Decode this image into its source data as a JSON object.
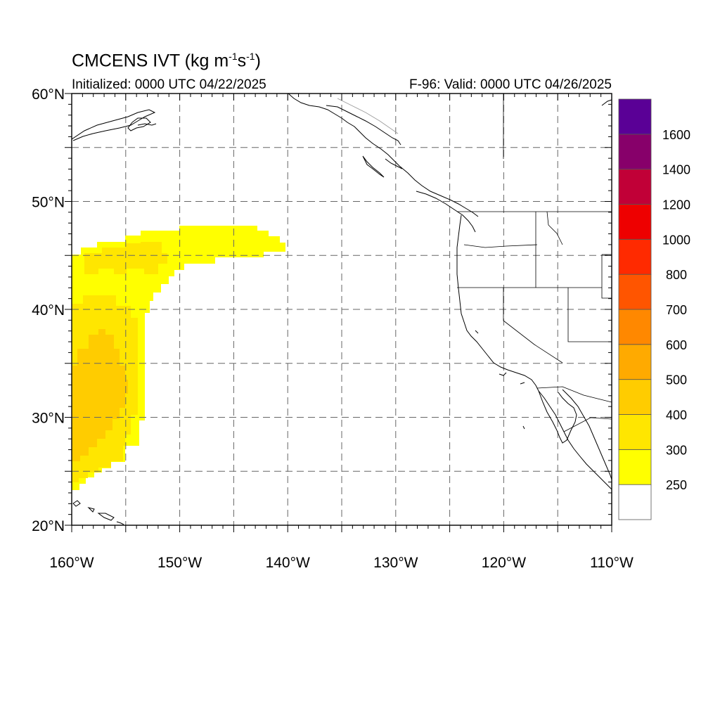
{
  "header": {
    "title_main": "CMCENS IVT (kg m",
    "title_exp1": "-1",
    "title_mid": "s",
    "title_exp2": "-1",
    "title_end": ")",
    "initialized": "Initialized: 0000 UTC 04/22/2025",
    "valid": "F-96: Valid: 0000 UTC 04/26/2025"
  },
  "map": {
    "lon_range": [
      -160,
      -110
    ],
    "lat_range": [
      20,
      60
    ],
    "lon_ticks": [
      "160°W",
      "150°W",
      "140°W",
      "130°W",
      "120°W",
      "110°W"
    ],
    "lat_ticks": [
      "20°N",
      "30°N",
      "40°N",
      "50°N",
      "60°N"
    ],
    "gridlines": "dashed every 5°",
    "ivt_plume": "Pacific moisture plume 24°N–48°N, 160°W–140°W, max ~400–500 near 32°N 157°W"
  },
  "colorbar": {
    "labels": [
      "250",
      "300",
      "400",
      "500",
      "600",
      "700",
      "800",
      "1000",
      "1200",
      "1400",
      "1600"
    ],
    "colors": [
      "#ffffff",
      "#ffff00",
      "#ffe600",
      "#ffcc00",
      "#ffaa00",
      "#ff8800",
      "#ff5500",
      "#ff2a00",
      "#ee0000",
      "#c10037",
      "#87006a",
      "#5a0096"
    ]
  }
}
